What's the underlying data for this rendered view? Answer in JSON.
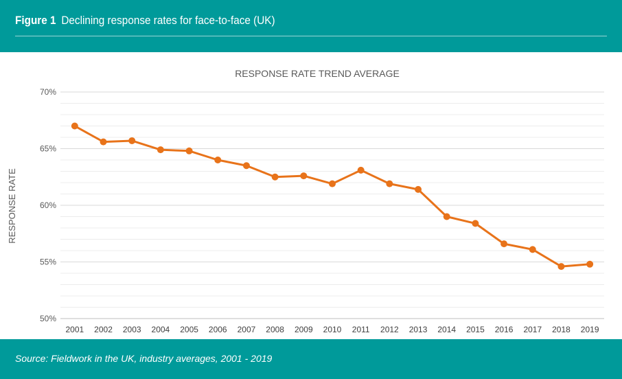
{
  "figure": {
    "label": "Figure 1",
    "title": "Declining response rates for face-to-face (UK)",
    "source": "Source: Fieldwork in the UK, industry averages, 2001 - 2019"
  },
  "colors": {
    "header_bg": "#009a9a",
    "line": "#e8731a",
    "grid": "#d9d9d9",
    "text": "#595959"
  },
  "chart_data": {
    "type": "line",
    "title": "RESPONSE RATE TREND AVERAGE",
    "xlabel": "",
    "ylabel": "RESPONSE RATE",
    "ylim": [
      50,
      70
    ],
    "yticks": [
      50,
      55,
      60,
      65,
      70
    ],
    "ytick_labels": [
      "50%",
      "55%",
      "60%",
      "65%",
      "70%"
    ],
    "minor_gridlines": true,
    "categories": [
      "2001",
      "2002",
      "2003",
      "2004",
      "2005",
      "2006",
      "2007",
      "2008",
      "2009",
      "2010",
      "2011",
      "2012",
      "2013",
      "2014",
      "2015",
      "2016",
      "2017",
      "2018",
      "2019"
    ],
    "series": [
      {
        "name": "Response rate",
        "values": [
          67.0,
          65.6,
          65.7,
          64.9,
          64.8,
          64.0,
          63.5,
          62.5,
          62.6,
          61.9,
          63.1,
          61.9,
          61.4,
          59.0,
          58.4,
          56.6,
          56.1,
          54.6,
          54.8
        ]
      }
    ]
  }
}
